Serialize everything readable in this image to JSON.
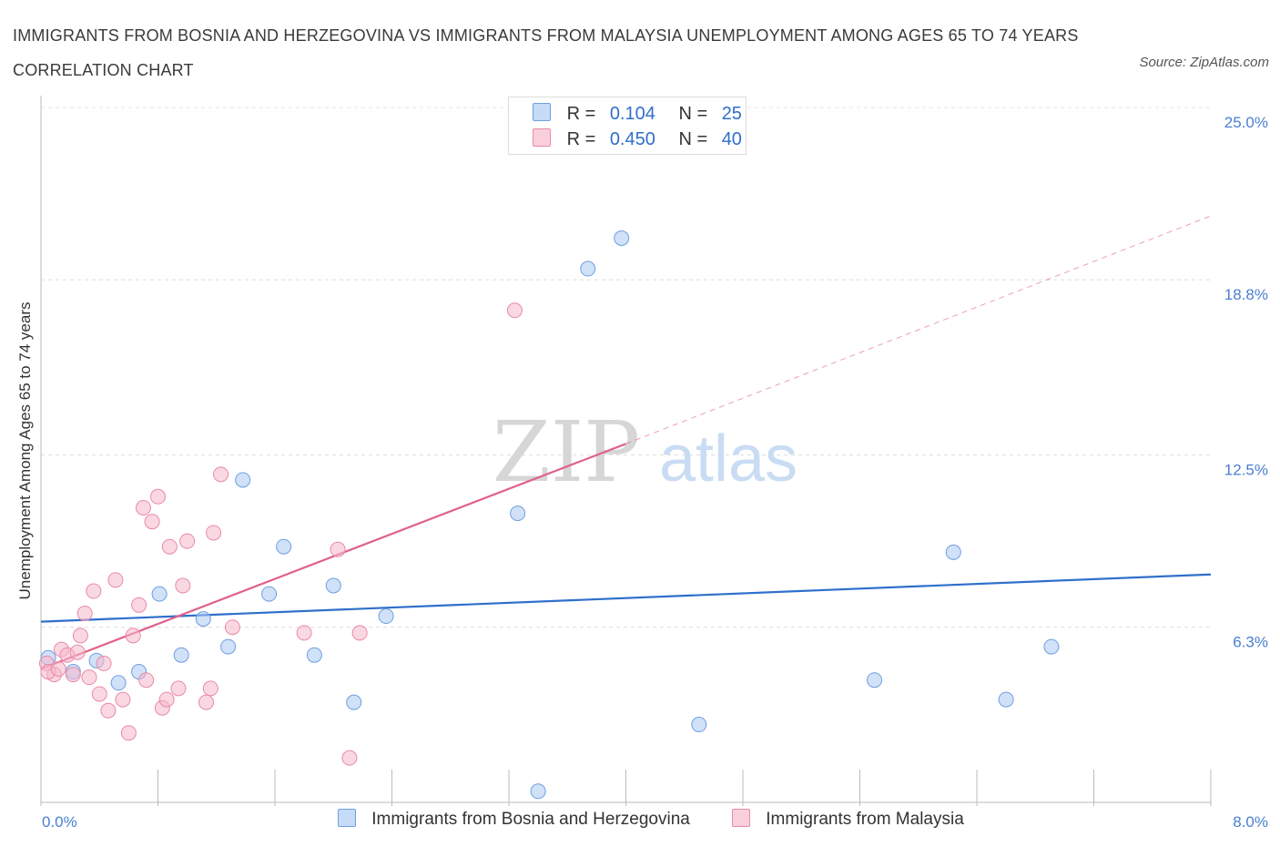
{
  "title": "IMMIGRANTS FROM BOSNIA AND HERZEGOVINA VS IMMIGRANTS FROM MALAYSIA UNEMPLOYMENT AMONG AGES 65 TO 74 YEARS CORRELATION CHART",
  "source": "Source: ZipAtlas.com",
  "watermark": {
    "zip": "ZIP",
    "atlas": "atlas"
  },
  "legend": {
    "rows": [
      {
        "r_label": "R =",
        "r_value": "0.104",
        "n_label": "N =",
        "n_value": "25",
        "color": "#a9c8f2"
      },
      {
        "r_label": "R =",
        "r_value": "0.450",
        "n_label": "N =",
        "n_value": "40",
        "color": "#f5b8cb"
      }
    ]
  },
  "chart_data": {
    "type": "scatter",
    "xlabel": "",
    "ylabel": "Unemployment Among Ages 65 to 74 years",
    "xlim": [
      0,
      8
    ],
    "ylim": [
      0,
      25
    ],
    "x_tick_labels": [
      "0.0%",
      "8.0%"
    ],
    "y_ticks": [
      6.3,
      12.5,
      18.8,
      25.0
    ],
    "y_tick_labels": [
      "6.3%",
      "12.5%",
      "18.8%",
      "25.0%"
    ],
    "grid": true,
    "legend_position": "top-center",
    "series": [
      {
        "name": "Immigrants from Bosnia and Herzegovina",
        "color": "#a9c8f2",
        "stroke": "#6f9fe0",
        "line_color": "#2f6fcb",
        "trend": {
          "x": [
            0,
            8
          ],
          "y": [
            6.5,
            8.2
          ]
        },
        "points": [
          {
            "x": 0.05,
            "y": 5.2
          },
          {
            "x": 0.22,
            "y": 4.7
          },
          {
            "x": 0.38,
            "y": 5.1
          },
          {
            "x": 0.53,
            "y": 4.3
          },
          {
            "x": 0.67,
            "y": 4.7
          },
          {
            "x": 0.81,
            "y": 7.5
          },
          {
            "x": 0.96,
            "y": 5.3
          },
          {
            "x": 1.11,
            "y": 6.6
          },
          {
            "x": 1.28,
            "y": 5.6
          },
          {
            "x": 1.38,
            "y": 11.6
          },
          {
            "x": 1.56,
            "y": 7.5
          },
          {
            "x": 1.66,
            "y": 9.2
          },
          {
            "x": 1.87,
            "y": 5.3
          },
          {
            "x": 2.0,
            "y": 7.8
          },
          {
            "x": 2.14,
            "y": 3.6
          },
          {
            "x": 2.36,
            "y": 6.7
          },
          {
            "x": 3.26,
            "y": 10.4
          },
          {
            "x": 3.4,
            "y": 0.4
          },
          {
            "x": 3.74,
            "y": 19.2
          },
          {
            "x": 3.97,
            "y": 20.3
          },
          {
            "x": 4.5,
            "y": 2.8
          },
          {
            "x": 5.7,
            "y": 4.4
          },
          {
            "x": 6.24,
            "y": 9.0
          },
          {
            "x": 6.6,
            "y": 3.7
          },
          {
            "x": 6.91,
            "y": 5.6
          }
        ]
      },
      {
        "name": "Immigrants from Malaysia",
        "color": "#f5b8cb",
        "stroke": "#e98aa8",
        "line_color": "#e0618a",
        "trend": {
          "x": [
            0,
            4.0
          ],
          "y": [
            4.8,
            12.9
          ]
        },
        "trend_extension": {
          "x": [
            4.0,
            8
          ],
          "y": [
            12.9,
            21.1
          ]
        },
        "points": [
          {
            "x": 0.04,
            "y": 5.0
          },
          {
            "x": 0.09,
            "y": 4.6
          },
          {
            "x": 0.14,
            "y": 5.5
          },
          {
            "x": 0.18,
            "y": 5.3
          },
          {
            "x": 0.22,
            "y": 4.6
          },
          {
            "x": 0.25,
            "y": 5.4
          },
          {
            "x": 0.27,
            "y": 6.0
          },
          {
            "x": 0.3,
            "y": 6.8
          },
          {
            "x": 0.33,
            "y": 4.5
          },
          {
            "x": 0.36,
            "y": 7.6
          },
          {
            "x": 0.4,
            "y": 3.9
          },
          {
            "x": 0.43,
            "y": 5.0
          },
          {
            "x": 0.46,
            "y": 3.3
          },
          {
            "x": 0.51,
            "y": 8.0
          },
          {
            "x": 0.56,
            "y": 3.7
          },
          {
            "x": 0.6,
            "y": 2.5
          },
          {
            "x": 0.63,
            "y": 6.0
          },
          {
            "x": 0.67,
            "y": 7.1
          },
          {
            "x": 0.7,
            "y": 10.6
          },
          {
            "x": 0.72,
            "y": 4.4
          },
          {
            "x": 0.76,
            "y": 10.1
          },
          {
            "x": 0.8,
            "y": 11.0
          },
          {
            "x": 0.83,
            "y": 3.4
          },
          {
            "x": 0.86,
            "y": 3.7
          },
          {
            "x": 0.88,
            "y": 9.2
          },
          {
            "x": 0.94,
            "y": 4.1
          },
          {
            "x": 0.97,
            "y": 7.8
          },
          {
            "x": 1.0,
            "y": 9.4
          },
          {
            "x": 1.13,
            "y": 3.6
          },
          {
            "x": 1.16,
            "y": 4.1
          },
          {
            "x": 1.18,
            "y": 9.7
          },
          {
            "x": 1.23,
            "y": 11.8
          },
          {
            "x": 1.31,
            "y": 6.3
          },
          {
            "x": 1.8,
            "y": 6.1
          },
          {
            "x": 2.03,
            "y": 9.1
          },
          {
            "x": 2.11,
            "y": 1.6
          },
          {
            "x": 2.18,
            "y": 6.1
          },
          {
            "x": 3.24,
            "y": 17.7
          },
          {
            "x": 0.05,
            "y": 4.7
          },
          {
            "x": 0.12,
            "y": 4.8
          }
        ]
      }
    ]
  }
}
